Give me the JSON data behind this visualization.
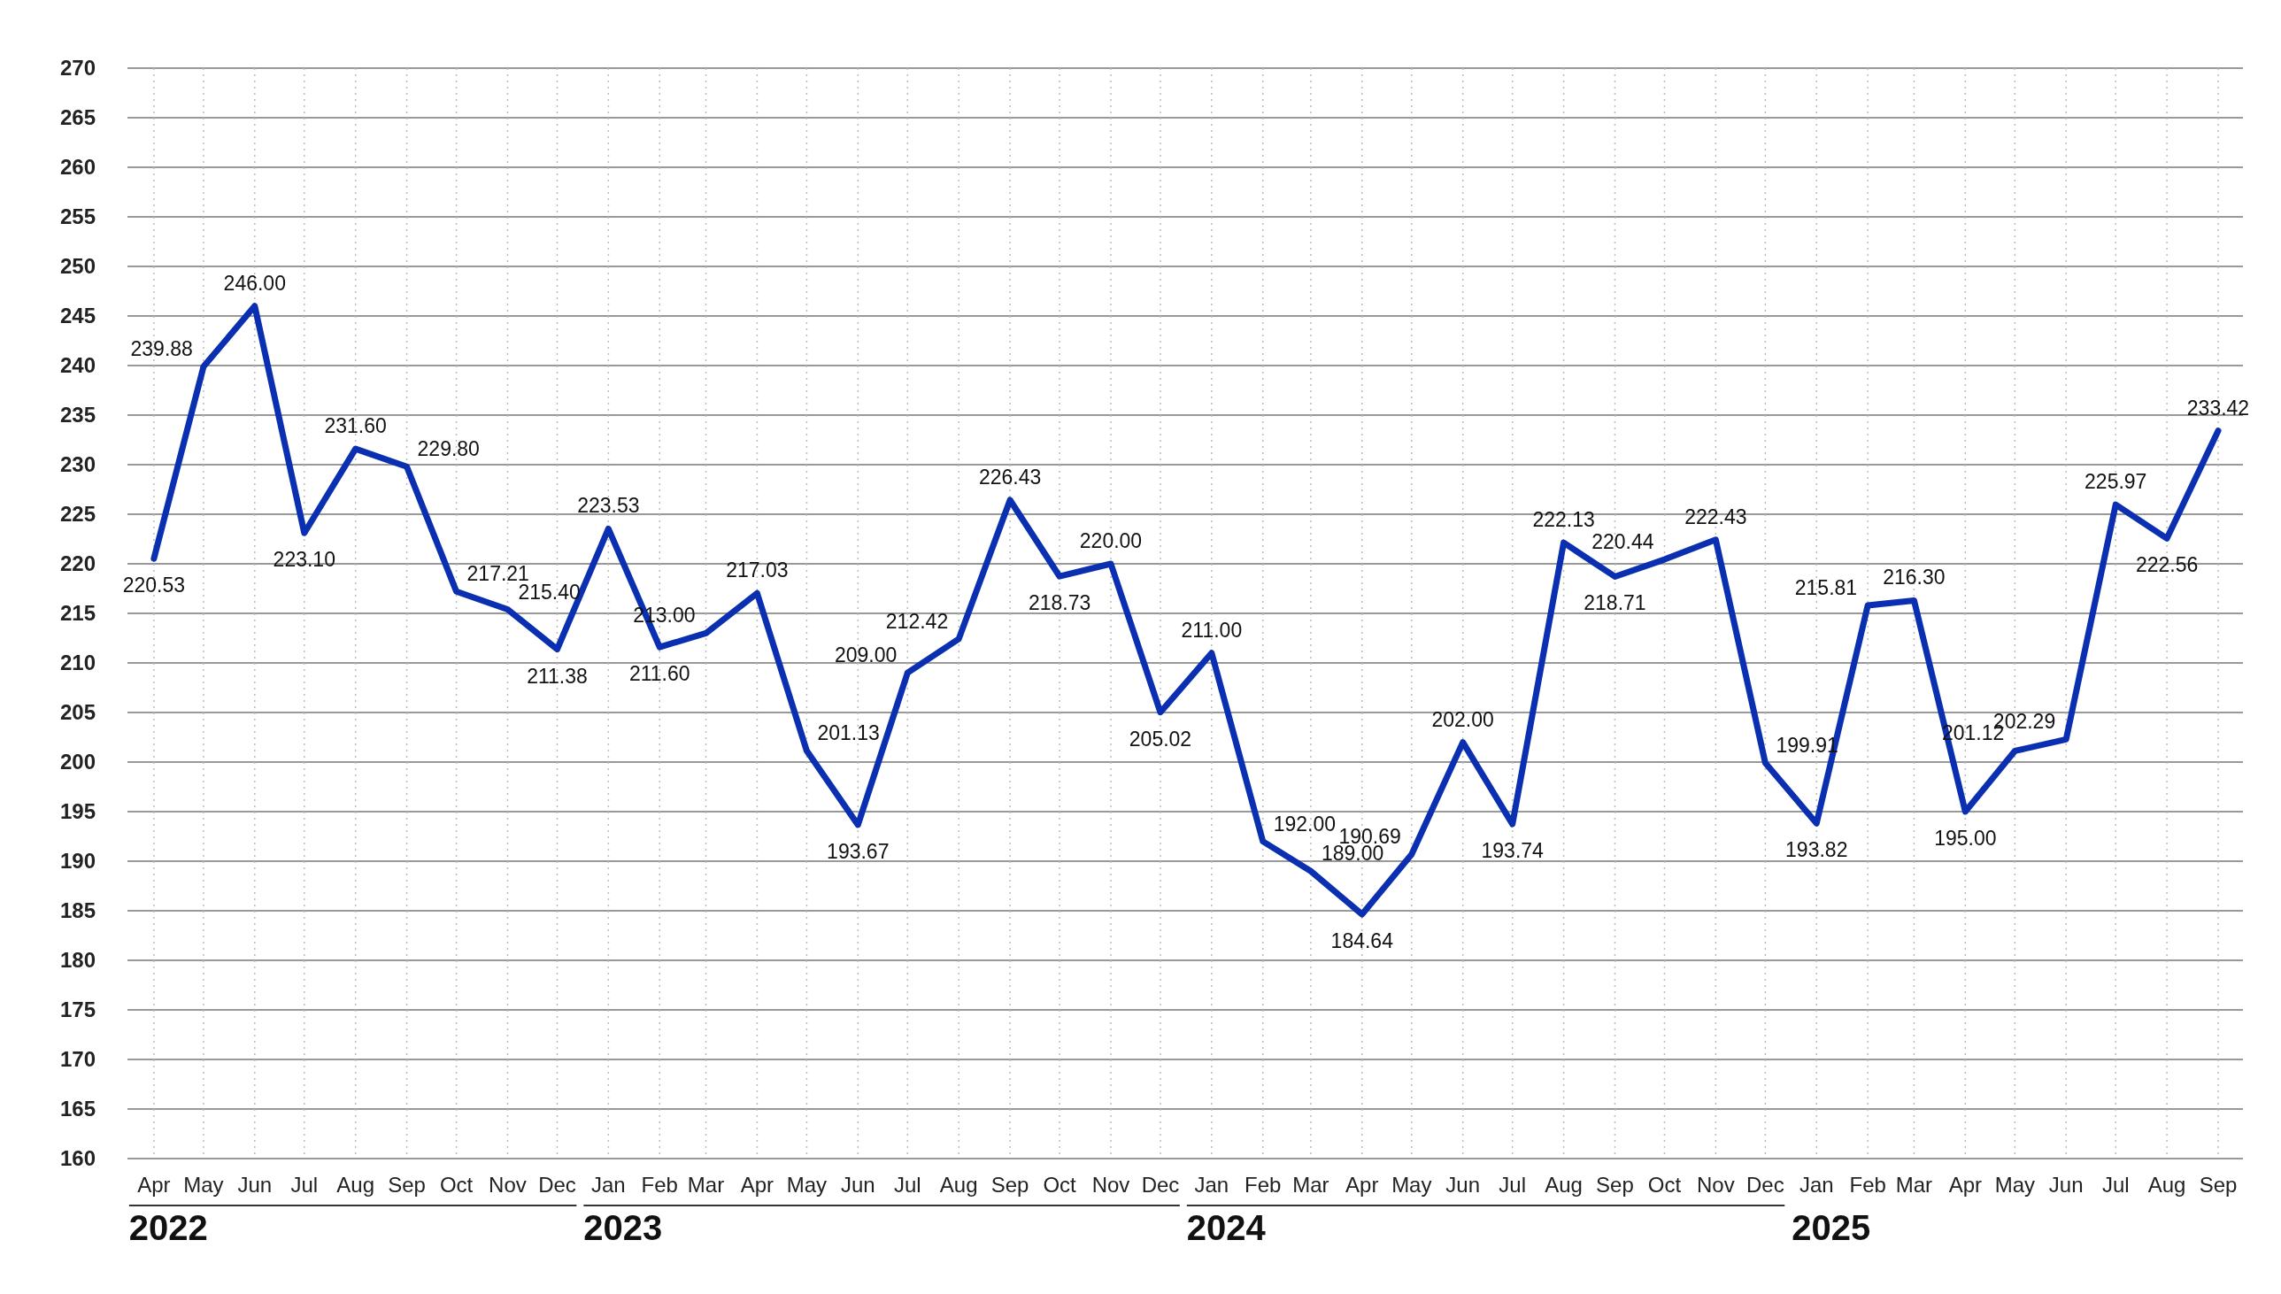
{
  "chart_data": {
    "type": "line",
    "x": [
      "2022-04",
      "2022-05",
      "2022-06",
      "2022-07",
      "2022-08",
      "2022-09",
      "2022-10",
      "2022-11",
      "2022-12",
      "2023-01",
      "2023-02",
      "2023-03",
      "2023-04",
      "2023-05",
      "2023-06",
      "2023-07",
      "2023-08",
      "2023-09",
      "2023-10",
      "2023-11",
      "2023-12",
      "2024-01",
      "2024-02",
      "2024-03",
      "2024-04",
      "2024-05",
      "2024-06",
      "2024-07",
      "2024-08",
      "2024-09",
      "2024-10",
      "2024-11",
      "2024-12",
      "2025-01",
      "2025-02",
      "2025-03",
      "2025-04",
      "2025-05",
      "2025-06",
      "2025-07",
      "2025-08",
      "2025-09"
    ],
    "series": [
      {
        "color": "#0a2fb0",
        "values": [
          220.53,
          239.88,
          246.0,
          223.1,
          231.6,
          229.8,
          217.21,
          215.4,
          211.38,
          223.53,
          211.6,
          213.0,
          217.03,
          201.13,
          193.67,
          209.0,
          212.42,
          226.43,
          218.73,
          220.0,
          205.02,
          211.0,
          192.0,
          189.0,
          184.64,
          190.69,
          202.0,
          193.74,
          222.13,
          218.71,
          220.44,
          222.43,
          199.91,
          193.82,
          215.81,
          216.3,
          195.0,
          201.12,
          202.29,
          225.97,
          222.56,
          233.42
        ],
        "value_labels": [
          "220.53",
          "239.88",
          "246.00",
          "223.10",
          "231.60",
          "229.80",
          "217.21",
          "215.40",
          "211.38",
          "223.53",
          "211.60",
          "213.00",
          "217.03",
          "201.13",
          "193.67",
          "209.00",
          "212.42",
          "226.43",
          "218.73",
          "220.00",
          "205.02",
          "211.00",
          "192.00",
          "189.00",
          "184.64",
          "190.69",
          "202.00",
          "193.74",
          "222.13",
          "218.71",
          "220.44",
          "222.43",
          "199.91",
          "193.82",
          "215.81",
          "216.30",
          "195.00",
          "201.12",
          "202.29",
          "225.97",
          "222.56",
          "233.42"
        ]
      }
    ],
    "xlim": [
      "2022-03-16",
      "2025-09-16"
    ],
    "xticks": [
      {
        "value": "2022-04",
        "label": "Apr"
      },
      {
        "value": "2022-05",
        "label": "May"
      },
      {
        "value": "2022-06",
        "label": "Jun"
      },
      {
        "value": "2022-07",
        "label": "Jul"
      },
      {
        "value": "2022-08",
        "label": "Aug"
      },
      {
        "value": "2022-09",
        "label": "Sep"
      },
      {
        "value": "2022-10",
        "label": "Oct"
      },
      {
        "value": "2022-11",
        "label": "Nov"
      },
      {
        "value": "2022-12",
        "label": "Dec"
      },
      {
        "value": "2023-01",
        "label": "Jan"
      },
      {
        "value": "2023-02",
        "label": "Feb"
      },
      {
        "value": "2023-03",
        "label": "Mar"
      },
      {
        "value": "2023-04",
        "label": "Apr"
      },
      {
        "value": "2023-05",
        "label": "May"
      },
      {
        "value": "2023-06",
        "label": "Jun"
      },
      {
        "value": "2023-07",
        "label": "Jul"
      },
      {
        "value": "2023-08",
        "label": "Aug"
      },
      {
        "value": "2023-09",
        "label": "Sep"
      },
      {
        "value": "2023-10",
        "label": "Oct"
      },
      {
        "value": "2023-11",
        "label": "Nov"
      },
      {
        "value": "2023-12",
        "label": "Dec"
      },
      {
        "value": "2024-01",
        "label": "Jan"
      },
      {
        "value": "2024-02",
        "label": "Feb"
      },
      {
        "value": "2024-03",
        "label": "Mar"
      },
      {
        "value": "2024-04",
        "label": "Apr"
      },
      {
        "value": "2024-05",
        "label": "May"
      },
      {
        "value": "2024-06",
        "label": "Jun"
      },
      {
        "value": "2024-07",
        "label": "Jul"
      },
      {
        "value": "2024-08",
        "label": "Aug"
      },
      {
        "value": "2024-09",
        "label": "Sep"
      },
      {
        "value": "2024-10",
        "label": "Oct"
      },
      {
        "value": "2024-11",
        "label": "Nov"
      },
      {
        "value": "2024-12",
        "label": "Dec"
      },
      {
        "value": "2025-01",
        "label": "Jan"
      },
      {
        "value": "2025-02",
        "label": "Feb"
      },
      {
        "value": "2025-03",
        "label": "Mar"
      },
      {
        "value": "2025-04",
        "label": "Apr"
      },
      {
        "value": "2025-05",
        "label": "May"
      },
      {
        "value": "2025-06",
        "label": "Jun"
      },
      {
        "value": "2025-07",
        "label": "Jul"
      },
      {
        "value": "2025-08",
        "label": "Aug"
      },
      {
        "value": "2025-09",
        "label": "Sep"
      }
    ],
    "ylim": [
      160,
      270
    ],
    "yticks": [
      160,
      165,
      170,
      175,
      180,
      185,
      190,
      195,
      200,
      205,
      210,
      215,
      220,
      225,
      230,
      235,
      240,
      245,
      250,
      255,
      260,
      265,
      270
    ],
    "grid": true,
    "annotations": [
      "2022",
      "2023",
      "2024",
      "2025"
    ]
  }
}
